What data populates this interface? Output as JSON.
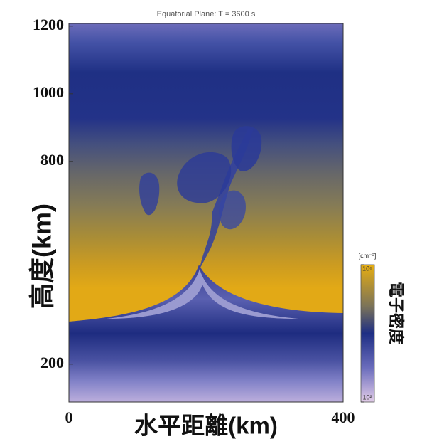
{
  "chart_data": {
    "type": "contour",
    "title": "Equatorial Plane: T =  3600 s",
    "xlabel": "水平距離(km)",
    "ylabel": "高度(km)",
    "xlim": [
      0,
      400
    ],
    "xticks": [
      0,
      400
    ],
    "ylim": [
      88,
      1208
    ],
    "yticks": [
      200,
      800,
      1000,
      1200
    ],
    "colorbar": {
      "label": "電子密度",
      "units": "[cm⁻³]",
      "lim": [
        100,
        1000000
      ],
      "log": true,
      "ticks": [
        {
          "value": 100,
          "label": "10²"
        },
        {
          "value": 1000000,
          "label": "10⁶"
        }
      ]
    }
  }
}
